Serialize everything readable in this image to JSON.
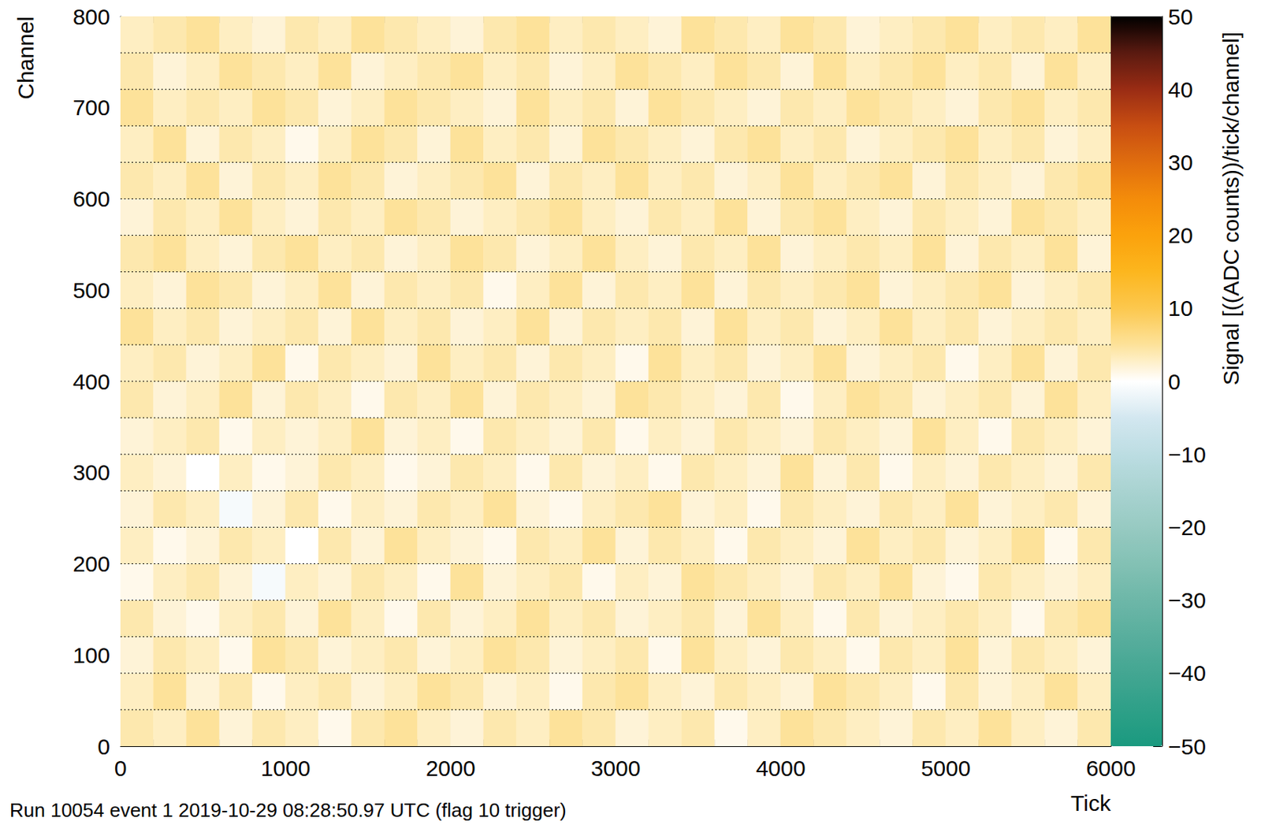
{
  "chart_data": {
    "type": "heatmap",
    "title": "Run 10054 event 1 2019-10-29 08:28:50.97 UTC (flag 10 trigger)",
    "x_label": "Tick",
    "y_label": "Channel",
    "xlim": [
      0,
      6000
    ],
    "xticks": [
      0,
      1000,
      2000,
      3000,
      4000,
      5000,
      6000
    ],
    "ylim": [
      0,
      800
    ],
    "yticks": [
      0,
      100,
      200,
      300,
      400,
      500,
      600,
      700,
      800
    ],
    "grid": false,
    "x_edges": [
      0,
      200,
      400,
      600,
      800,
      1000,
      1200,
      1400,
      1600,
      1800,
      2000,
      2200,
      2400,
      2600,
      2800,
      3000,
      3200,
      3400,
      3600,
      3800,
      4000,
      4200,
      4400,
      4600,
      4800,
      5000,
      5200,
      5400,
      5600,
      5800,
      6000
    ],
    "y_edges": [
      0,
      40,
      80,
      120,
      160,
      200,
      240,
      280,
      320,
      360,
      400,
      440,
      480,
      520,
      560,
      600,
      640,
      680,
      720,
      760,
      800
    ],
    "cells": [
      [
        4,
        3,
        5,
        2,
        4,
        3,
        1,
        4,
        5,
        3,
        2,
        4,
        3,
        5,
        4,
        2,
        3,
        4,
        1,
        3,
        5,
        4,
        3,
        2,
        4,
        3,
        5,
        3,
        2,
        4
      ],
      [
        3,
        5,
        2,
        4,
        1,
        3,
        4,
        2,
        3,
        5,
        4,
        2,
        3,
        1,
        4,
        5,
        3,
        2,
        4,
        3,
        2,
        5,
        4,
        3,
        1,
        4,
        2,
        3,
        5,
        3
      ],
      [
        2,
        4,
        3,
        1,
        5,
        4,
        2,
        3,
        4,
        2,
        3,
        5,
        4,
        2,
        3,
        4,
        1,
        5,
        3,
        2,
        4,
        3,
        1,
        4,
        3,
        5,
        2,
        4,
        3,
        2
      ],
      [
        4,
        2,
        1,
        3,
        4,
        2,
        5,
        3,
        1,
        4,
        2,
        3,
        5,
        3,
        4,
        2,
        3,
        4,
        2,
        5,
        3,
        1,
        4,
        2,
        3,
        4,
        3,
        1,
        4,
        5
      ],
      [
        1,
        3,
        4,
        2,
        -1,
        3,
        2,
        4,
        3,
        1,
        5,
        2,
        3,
        4,
        1,
        3,
        2,
        5,
        4,
        3,
        2,
        4,
        3,
        5,
        2,
        1,
        4,
        3,
        2,
        3
      ],
      [
        3,
        1,
        2,
        4,
        3,
        0,
        4,
        2,
        5,
        3,
        2,
        1,
        4,
        3,
        5,
        2,
        4,
        3,
        1,
        4,
        3,
        2,
        5,
        3,
        4,
        2,
        3,
        5,
        1,
        4
      ],
      [
        2,
        4,
        3,
        -1,
        2,
        4,
        1,
        3,
        2,
        4,
        3,
        5,
        2,
        1,
        3,
        4,
        5,
        2,
        3,
        1,
        4,
        3,
        2,
        4,
        3,
        5,
        2,
        3,
        4,
        2
      ],
      [
        3,
        2,
        0,
        3,
        1,
        2,
        4,
        3,
        1,
        2,
        4,
        3,
        1,
        4,
        2,
        3,
        1,
        4,
        3,
        2,
        5,
        2,
        4,
        1,
        3,
        2,
        4,
        3,
        2,
        4
      ],
      [
        2,
        3,
        4,
        1,
        3,
        2,
        3,
        5,
        2,
        3,
        1,
        4,
        3,
        2,
        4,
        1,
        3,
        2,
        4,
        3,
        2,
        4,
        3,
        2,
        5,
        3,
        1,
        4,
        3,
        2
      ],
      [
        4,
        2,
        3,
        5,
        2,
        4,
        3,
        1,
        4,
        3,
        5,
        2,
        4,
        3,
        2,
        5,
        4,
        3,
        2,
        4,
        1,
        3,
        5,
        4,
        2,
        3,
        4,
        2,
        5,
        3
      ],
      [
        3,
        4,
        2,
        3,
        5,
        1,
        4,
        3,
        2,
        5,
        3,
        4,
        2,
        4,
        3,
        1,
        5,
        3,
        4,
        2,
        3,
        5,
        2,
        3,
        4,
        1,
        3,
        5,
        2,
        4
      ],
      [
        5,
        3,
        4,
        2,
        3,
        4,
        2,
        5,
        3,
        4,
        2,
        3,
        5,
        2,
        4,
        3,
        4,
        2,
        5,
        3,
        4,
        2,
        3,
        5,
        3,
        4,
        2,
        3,
        4,
        3
      ],
      [
        3,
        2,
        5,
        4,
        2,
        3,
        5,
        2,
        4,
        3,
        4,
        1,
        3,
        5,
        2,
        4,
        3,
        5,
        2,
        4,
        3,
        4,
        5,
        2,
        3,
        4,
        5,
        2,
        3,
        4
      ],
      [
        4,
        5,
        3,
        2,
        4,
        5,
        3,
        4,
        2,
        3,
        5,
        4,
        2,
        3,
        5,
        3,
        2,
        4,
        3,
        5,
        2,
        3,
        4,
        3,
        5,
        2,
        4,
        3,
        5,
        2
      ],
      [
        2,
        4,
        3,
        5,
        3,
        2,
        4,
        3,
        5,
        4,
        2,
        3,
        4,
        5,
        3,
        2,
        4,
        3,
        5,
        2,
        4,
        5,
        3,
        2,
        4,
        3,
        2,
        5,
        4,
        3
      ],
      [
        4,
        3,
        5,
        2,
        4,
        3,
        5,
        4,
        2,
        3,
        4,
        5,
        2,
        4,
        3,
        5,
        3,
        4,
        2,
        3,
        5,
        3,
        4,
        5,
        2,
        4,
        3,
        2,
        4,
        5
      ],
      [
        3,
        5,
        2,
        4,
        3,
        1,
        3,
        5,
        4,
        2,
        5,
        3,
        4,
        2,
        5,
        4,
        3,
        2,
        4,
        5,
        3,
        4,
        2,
        3,
        4,
        5,
        3,
        4,
        2,
        3
      ],
      [
        5,
        3,
        4,
        3,
        5,
        4,
        2,
        3,
        5,
        4,
        3,
        2,
        5,
        3,
        4,
        2,
        5,
        4,
        3,
        2,
        4,
        3,
        5,
        4,
        3,
        2,
        4,
        5,
        3,
        4
      ],
      [
        4,
        2,
        3,
        5,
        4,
        3,
        5,
        2,
        3,
        4,
        5,
        3,
        4,
        2,
        3,
        5,
        4,
        3,
        5,
        4,
        2,
        5,
        3,
        4,
        5,
        3,
        4,
        2,
        5,
        3
      ],
      [
        3,
        4,
        5,
        3,
        2,
        4,
        3,
        5,
        4,
        3,
        2,
        4,
        5,
        3,
        4,
        3,
        2,
        5,
        4,
        3,
        5,
        4,
        2,
        3,
        4,
        5,
        3,
        4,
        3,
        5
      ]
    ],
    "channel_boundaries": [
      40,
      80,
      120,
      160,
      200,
      240,
      280,
      320,
      360,
      400,
      440,
      480,
      520,
      560,
      600,
      640,
      680,
      720,
      760
    ],
    "colorbar": {
      "label": "Signal [((ADC counts))/tick/channel]",
      "range": [
        -50,
        50
      ],
      "ticks": [
        {
          "value": -50,
          "label": "−50"
        },
        {
          "value": -40,
          "label": "−40"
        },
        {
          "value": -30,
          "label": "−30"
        },
        {
          "value": -20,
          "label": "−20"
        },
        {
          "value": -10,
          "label": "−10"
        },
        0,
        10,
        20,
        30,
        40,
        50
      ]
    }
  }
}
